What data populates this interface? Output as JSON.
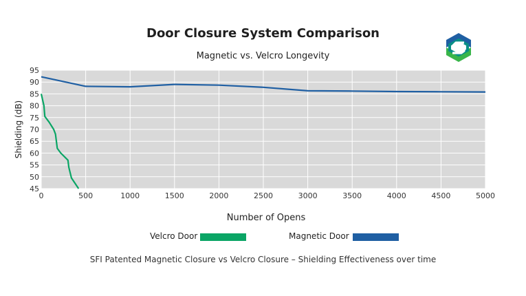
{
  "colors": {
    "plot_bg": "#d9d9d9",
    "grid": "#ffffff",
    "velcro": "#0aa565",
    "magnetic": "#1f5fa3",
    "logo_blue": "#1f5fa3",
    "logo_green": "#39b54a",
    "logo_teal": "#0a8f86"
  },
  "logo": {
    "icon": "sfi-s-logo-icon"
  },
  "chart_data": {
    "type": "line",
    "title": "Door Closure System Comparison",
    "subtitle": "Magnetic vs. Velcro Longevity",
    "xlabel": "Number of Opens",
    "ylabel": "Shielding (dB)",
    "xlim": [
      0,
      5000
    ],
    "ylim": [
      45,
      95
    ],
    "x_ticks": [
      0,
      500,
      1000,
      1500,
      2000,
      2500,
      3000,
      3500,
      4000,
      4500,
      5000
    ],
    "y_ticks": [
      45,
      50,
      55,
      60,
      65,
      70,
      75,
      80,
      85,
      90,
      95
    ],
    "grid": true,
    "legend_position": "bottom",
    "series": [
      {
        "name": "Velcro Door",
        "x": [
          0,
          30,
          40,
          90,
          140,
          160,
          170,
          180,
          220,
          300,
          310,
          340,
          420
        ],
        "y": [
          85,
          80,
          75.5,
          73,
          70,
          68,
          65,
          62,
          60,
          57,
          54,
          49.5,
          45
        ]
      },
      {
        "name": "Magnetic Door",
        "x": [
          0,
          500,
          1000,
          1500,
          2000,
          2500,
          3000,
          3500,
          4000,
          4500,
          5000
        ],
        "y": [
          92.2,
          88.2,
          88,
          89,
          88.7,
          87.8,
          86.3,
          86.2,
          86,
          85.9,
          85.8
        ]
      }
    ],
    "caption": "SFI Patented Magnetic Closure vs Velcro Closure – Shielding Effectiveness over time"
  }
}
